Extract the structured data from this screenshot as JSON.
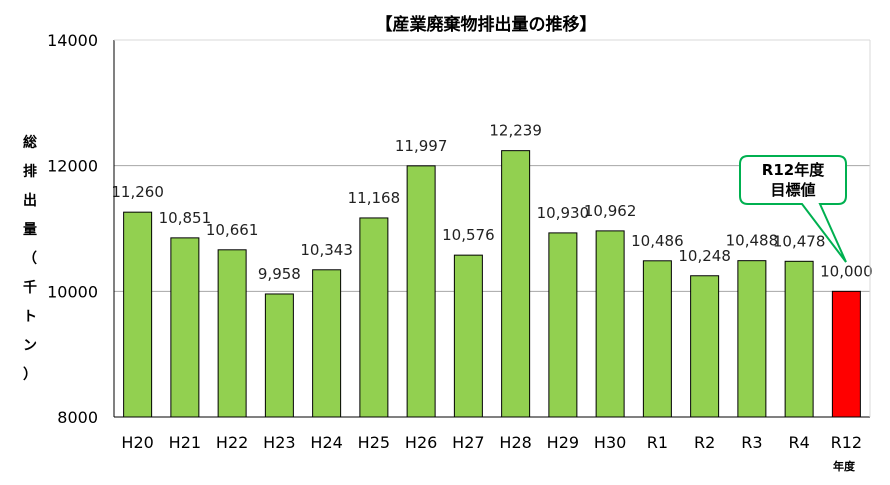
{
  "chart_data": {
    "type": "bar",
    "title": "【産業廃棄物排出量の推移】",
    "ylabel": "総排出量（千トン）",
    "ylabel_chars": [
      "総",
      "排",
      "出",
      "量",
      "（",
      "千",
      "ト",
      "ン",
      "）"
    ],
    "xlabel_sub": "年度",
    "categories": [
      "H20",
      "H21",
      "H22",
      "H23",
      "H24",
      "H25",
      "H26",
      "H27",
      "H28",
      "H29",
      "H30",
      "R1",
      "R2",
      "R3",
      "R4",
      "R12"
    ],
    "values": [
      11260,
      10851,
      10661,
      9958,
      10343,
      11168,
      11997,
      10576,
      12239,
      10930,
      10962,
      10486,
      10248,
      10488,
      10478,
      10000
    ],
    "value_labels": [
      "11,260",
      "10,851",
      "10,661",
      "9,958",
      "10,343",
      "11,168",
      "11,997",
      "10,576",
      "12,239",
      "10,930",
      "10,962",
      "10,486",
      "10,248",
      "10,488",
      "10,478",
      "10,000"
    ],
    "ylim": [
      8000,
      14000
    ],
    "yticks": [
      8000,
      10000,
      12000,
      14000
    ],
    "ytick_labels": [
      "8000",
      "10000",
      "12000",
      "14000"
    ],
    "grid": true,
    "colors": {
      "bar": "#92d050",
      "target_bar": "#ff0000",
      "callout_border": "#00b050",
      "outline": "#000000"
    },
    "target_index": 15,
    "callout": {
      "line1": "R12年度",
      "line2": "目標値"
    }
  }
}
